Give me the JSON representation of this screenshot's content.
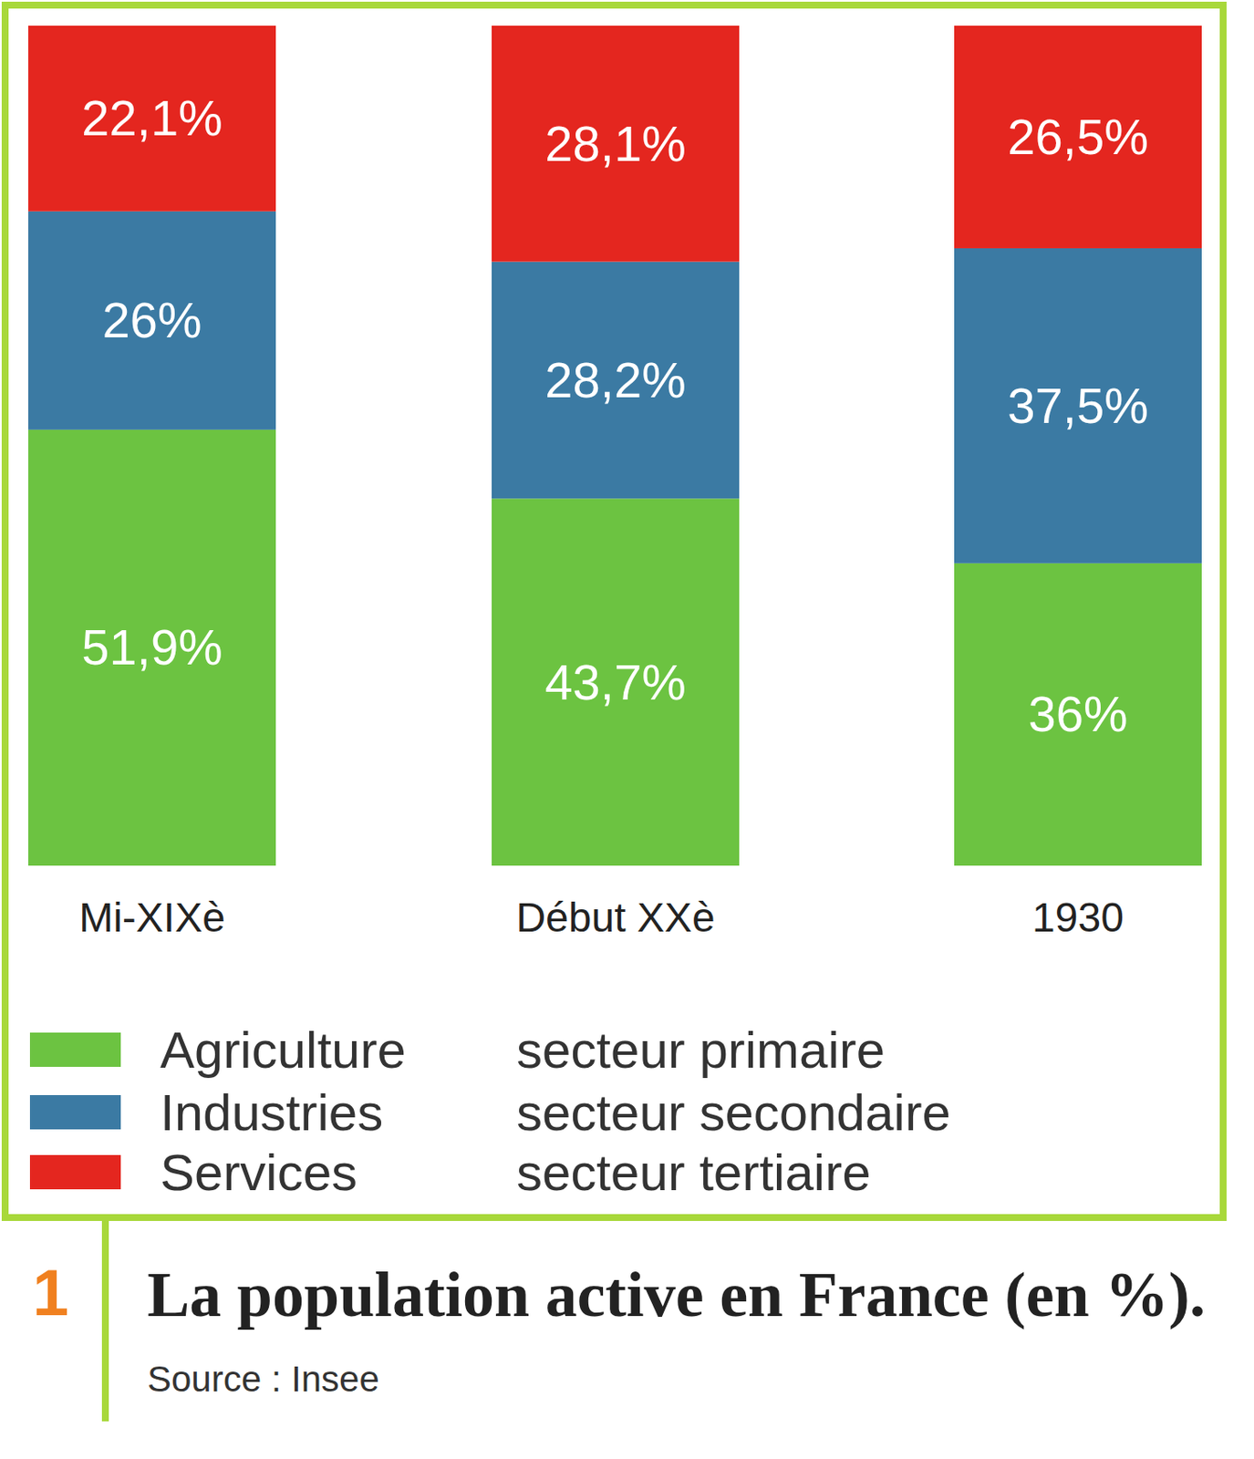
{
  "chart_data": {
    "type": "bar",
    "stacked": true,
    "data_labels": true,
    "tick_labels": "x",
    "title": "La population active en France (en %).",
    "source": "Source : Insee",
    "figure_label": "1",
    "categories": [
      "Mi-XIXè",
      "Début XXè",
      "1930"
    ],
    "ylim": [
      0,
      100
    ],
    "series": [
      {
        "name": "Agriculture",
        "sector": "secteur primaire",
        "color": "#6cc341",
        "values": [
          51.9,
          43.7,
          36
        ],
        "value_labels": [
          "51,9%",
          "43,7%",
          "36%"
        ]
      },
      {
        "name": "Industries",
        "sector": "secteur secondaire",
        "color": "#3b7aa3",
        "values": [
          26,
          28.2,
          37.5
        ],
        "value_labels": [
          "26%",
          "28,2%",
          "37,5%"
        ]
      },
      {
        "name": "Services",
        "sector": "secteur tertiaire",
        "color": "#e4261f",
        "values": [
          22.1,
          28.1,
          26.5
        ],
        "value_labels": [
          "22,1%",
          "28,1%",
          "26,5%"
        ]
      }
    ]
  }
}
